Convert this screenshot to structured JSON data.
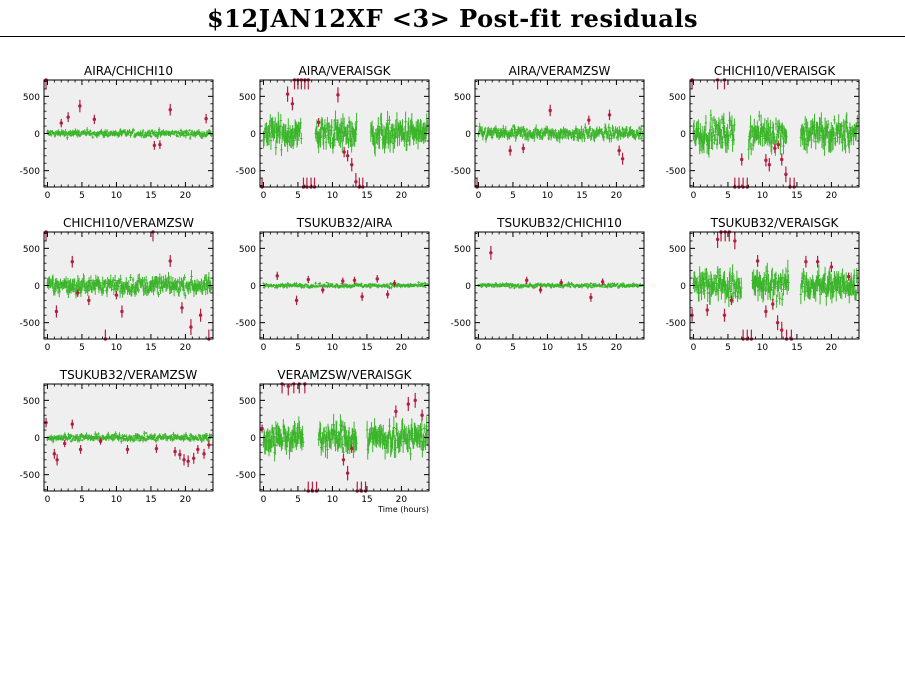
{
  "page": {
    "title": "$12JAN12XF <3> Post-fit residuals"
  },
  "colors": {
    "good": "#3cb52c",
    "flagged": "#b3203f",
    "panel_bg": "#efefef",
    "axis": "#000000"
  },
  "chart_data": {
    "type": "scatter",
    "xlabel": "Time (hours)",
    "xlim": [
      -0.5,
      24
    ],
    "ylim": [
      -720,
      720
    ],
    "yticks": [
      -500,
      0,
      500
    ],
    "xticks": [
      0,
      5,
      10,
      15,
      20
    ],
    "panels": [
      {
        "title": "AIRA/CHICHI10",
        "show_xlabel": false,
        "good_amplitude": 55,
        "good_gaps": [],
        "flagged": [
          [
            -0.2,
            720
          ],
          [
            2.0,
            140
          ],
          [
            3.0,
            220
          ],
          [
            4.7,
            370
          ],
          [
            6.8,
            190
          ],
          [
            15.5,
            -160
          ],
          [
            16.3,
            -150
          ],
          [
            17.8,
            320
          ],
          [
            23.0,
            200
          ]
        ]
      },
      {
        "title": "AIRA/VERAISGK",
        "show_xlabel": false,
        "good_amplitude": 220,
        "good_gaps": [
          [
            5.5,
            7.5
          ],
          [
            13.5,
            15.5
          ]
        ],
        "flagged": [
          [
            -0.2,
            -720
          ],
          [
            3.5,
            530
          ],
          [
            4.2,
            400
          ],
          [
            4.5,
            720
          ],
          [
            5.0,
            720
          ],
          [
            5.5,
            720
          ],
          [
            6.0,
            720
          ],
          [
            6.5,
            720
          ],
          [
            5.8,
            -720
          ],
          [
            6.3,
            -720
          ],
          [
            6.9,
            -720
          ],
          [
            7.4,
            -720
          ],
          [
            8.0,
            150
          ],
          [
            10.8,
            520
          ],
          [
            11.7,
            -250
          ],
          [
            12.2,
            -300
          ],
          [
            12.8,
            -420
          ],
          [
            13.4,
            -650
          ],
          [
            13.9,
            -720
          ],
          [
            14.4,
            -720
          ]
        ]
      },
      {
        "title": "AIRA/VERAMZSW",
        "show_xlabel": false,
        "good_amplitude": 95,
        "good_gaps": [],
        "flagged": [
          [
            -0.2,
            -720
          ],
          [
            4.6,
            -230
          ],
          [
            6.5,
            -200
          ],
          [
            10.4,
            310
          ],
          [
            16.0,
            180
          ],
          [
            19.0,
            250
          ],
          [
            20.4,
            -230
          ],
          [
            20.9,
            -340
          ]
        ]
      },
      {
        "title": "CHICHI10/VERAISGK",
        "show_xlabel": false,
        "good_amplitude": 220,
        "good_gaps": [
          [
            6.0,
            8.0
          ],
          [
            13.5,
            15.5
          ]
        ],
        "flagged": [
          [
            -0.2,
            720
          ],
          [
            3.5,
            720
          ],
          [
            4.5,
            720
          ],
          [
            6.0,
            -720
          ],
          [
            6.6,
            -720
          ],
          [
            7.2,
            -720
          ],
          [
            7.8,
            -720
          ],
          [
            7.0,
            -350
          ],
          [
            10.5,
            -360
          ],
          [
            11.0,
            -420
          ],
          [
            11.8,
            -200
          ],
          [
            12.3,
            -150
          ],
          [
            12.8,
            -350
          ],
          [
            13.4,
            -550
          ],
          [
            14.0,
            -720
          ],
          [
            14.6,
            -720
          ]
        ]
      },
      {
        "title": "CHICHI10/VERAMZSW",
        "show_xlabel": false,
        "good_amplitude": 130,
        "good_gaps": [],
        "flagged": [
          [
            -0.2,
            720
          ],
          [
            1.3,
            -350
          ],
          [
            3.6,
            320
          ],
          [
            4.4,
            -100
          ],
          [
            6.0,
            -200
          ],
          [
            8.4,
            -720
          ],
          [
            10.0,
            -130
          ],
          [
            10.8,
            -350
          ],
          [
            15.3,
            720
          ],
          [
            17.8,
            330
          ],
          [
            19.5,
            -300
          ],
          [
            20.8,
            -560
          ],
          [
            22.2,
            -400
          ],
          [
            23.4,
            -720
          ]
        ]
      },
      {
        "title": "TSUKUB32/AIRA",
        "show_xlabel": false,
        "good_amplitude": 35,
        "good_gaps": [],
        "flagged": [
          [
            2.0,
            130
          ],
          [
            4.8,
            -200
          ],
          [
            6.5,
            80
          ],
          [
            8.6,
            -60
          ],
          [
            11.5,
            60
          ],
          [
            13.2,
            70
          ],
          [
            14.3,
            -150
          ],
          [
            16.5,
            90
          ],
          [
            18.0,
            -120
          ],
          [
            19.0,
            30
          ]
        ]
      },
      {
        "title": "TSUKUB32/CHICHI10",
        "show_xlabel": false,
        "good_amplitude": 35,
        "good_gaps": [],
        "flagged": [
          [
            1.8,
            440
          ],
          [
            7.0,
            70
          ],
          [
            9.0,
            -60
          ],
          [
            12.0,
            40
          ],
          [
            16.3,
            -160
          ],
          [
            18.0,
            50
          ]
        ]
      },
      {
        "title": "TSUKUB32/VERAISGK",
        "show_xlabel": false,
        "good_amplitude": 220,
        "good_gaps": [
          [
            7.0,
            8.5
          ],
          [
            13.8,
            15.5
          ]
        ],
        "flagged": [
          [
            -0.2,
            -400
          ],
          [
            2.0,
            -330
          ],
          [
            3.5,
            620
          ],
          [
            4.0,
            720
          ],
          [
            4.6,
            720
          ],
          [
            5.2,
            720
          ],
          [
            6.0,
            600
          ],
          [
            4.5,
            -400
          ],
          [
            5.5,
            -200
          ],
          [
            7.2,
            -720
          ],
          [
            7.8,
            -720
          ],
          [
            8.4,
            -720
          ],
          [
            9.3,
            330
          ],
          [
            10.5,
            -350
          ],
          [
            11.5,
            -250
          ],
          [
            12.2,
            -500
          ],
          [
            12.8,
            -600
          ],
          [
            13.5,
            -720
          ],
          [
            14.2,
            -720
          ],
          [
            16.3,
            320
          ],
          [
            18.0,
            320
          ],
          [
            20.0,
            250
          ],
          [
            22.5,
            120
          ]
        ]
      },
      {
        "title": "TSUKUB32/VERAMZSW",
        "show_xlabel": false,
        "good_amplitude": 55,
        "good_gaps": [],
        "flagged": [
          [
            -0.2,
            200
          ],
          [
            1.0,
            -220
          ],
          [
            1.4,
            -300
          ],
          [
            2.5,
            -80
          ],
          [
            3.6,
            180
          ],
          [
            4.8,
            -160
          ],
          [
            7.7,
            -50
          ],
          [
            11.6,
            -160
          ],
          [
            15.8,
            -150
          ],
          [
            18.5,
            -190
          ],
          [
            19.2,
            -230
          ],
          [
            19.8,
            -300
          ],
          [
            20.4,
            -320
          ],
          [
            21.2,
            -280
          ],
          [
            21.8,
            -160
          ],
          [
            22.7,
            -220
          ],
          [
            23.4,
            -100
          ]
        ]
      },
      {
        "title": "VERAMZSW/VERAISGK",
        "show_xlabel": true,
        "good_amplitude": 220,
        "good_gaps": [
          [
            5.8,
            8.0
          ],
          [
            13.5,
            15.0
          ]
        ],
        "flagged": [
          [
            -0.2,
            120
          ],
          [
            2.7,
            720
          ],
          [
            3.6,
            690
          ],
          [
            4.4,
            720
          ],
          [
            5.2,
            720
          ],
          [
            6.0,
            720
          ],
          [
            6.5,
            -720
          ],
          [
            7.1,
            -720
          ],
          [
            7.7,
            -720
          ],
          [
            11.6,
            -300
          ],
          [
            12.2,
            -480
          ],
          [
            12.8,
            -150
          ],
          [
            13.6,
            -720
          ],
          [
            14.2,
            -720
          ],
          [
            14.8,
            -720
          ],
          [
            19.2,
            350
          ],
          [
            21.0,
            450
          ],
          [
            22.0,
            500
          ],
          [
            23.0,
            300
          ]
        ]
      }
    ]
  }
}
